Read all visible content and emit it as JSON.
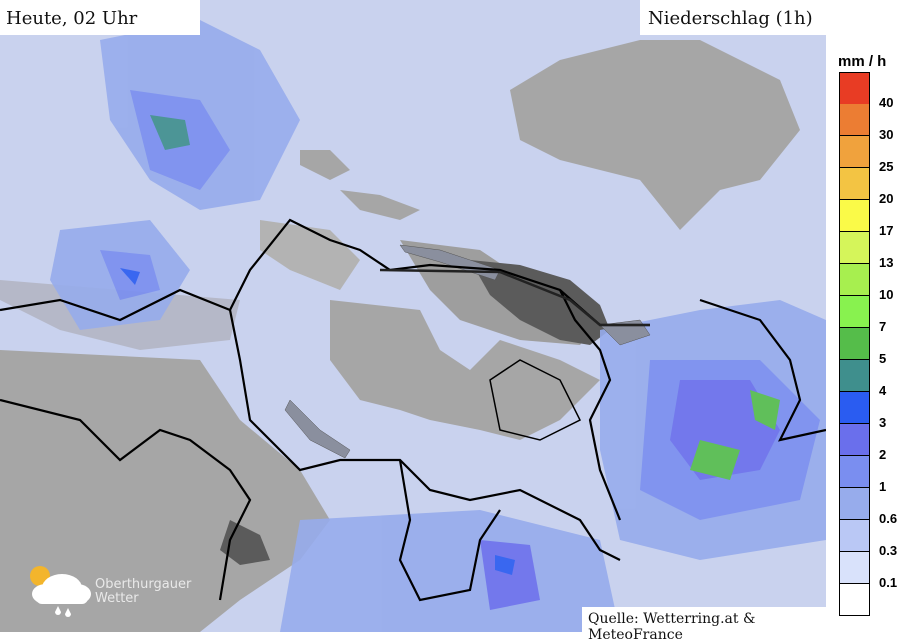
{
  "header": {
    "time_label": "Heute, 02 Uhr",
    "layer_label": "Niederschlag (1h)"
  },
  "legend": {
    "unit": "mm / h",
    "classes": [
      {
        "color": "#e83c24",
        "label": "40"
      },
      {
        "color": "#ec7d33",
        "label": "30"
      },
      {
        "color": "#f0a23d",
        "label": "25"
      },
      {
        "color": "#f3c443",
        "label": "20"
      },
      {
        "color": "#fafa48",
        "label": "17"
      },
      {
        "color": "#d5f55a",
        "label": "13"
      },
      {
        "color": "#a7ef4f",
        "label": "10"
      },
      {
        "color": "#88f24f",
        "label": "7"
      },
      {
        "color": "#55bd4a",
        "label": "5"
      },
      {
        "color": "#3f8f8d",
        "label": "4"
      },
      {
        "color": "#2a5cf1",
        "label": "3"
      },
      {
        "color": "#6a6fec",
        "label": "2"
      },
      {
        "color": "#7a8ef0",
        "label": "1"
      },
      {
        "color": "#97acec",
        "label": "0.6"
      },
      {
        "color": "#bac8f5",
        "label": "0.3"
      },
      {
        "color": "#d9e2fb",
        "label": "0.1"
      },
      {
        "color": "#ffffff",
        "label": ""
      }
    ]
  },
  "logo": {
    "line1": "Oberthurgauer",
    "line2": "Wetter"
  },
  "source": "Quelle: Wetterring.at & MeteoFrance"
}
